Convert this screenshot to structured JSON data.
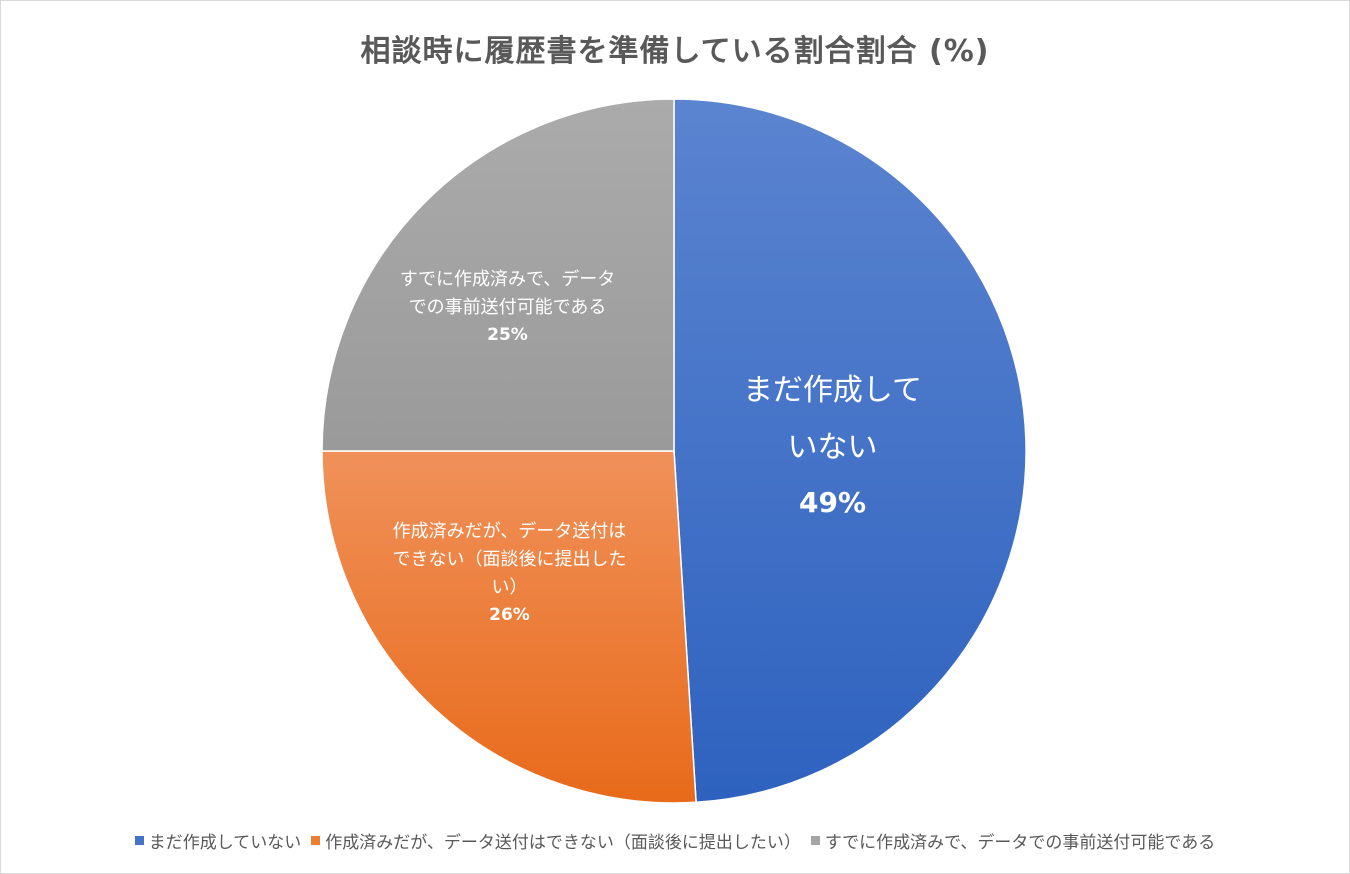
{
  "chart_data": {
    "type": "pie",
    "title": "相談時に履歴書を準備している割合割合 (%)",
    "categories": [
      "まだ作成していない",
      "作成済みだが、データ送付はできない（面談後に提出したい）",
      "すでに作成済みで、データでの事前送付可能である"
    ],
    "values": [
      49,
      26,
      25
    ],
    "data_labels": [
      {
        "category_lines": [
          "まだ作成して",
          "いない"
        ],
        "value": "49%"
      },
      {
        "category_lines": [
          "作成済みだが、データ送付は",
          "できない（面談後に提出した",
          "い）"
        ],
        "value": "26%"
      },
      {
        "category_lines": [
          "すでに作成済みで、データ",
          "での事前送付可能である"
        ],
        "value": "25%"
      }
    ],
    "colors": [
      "#4472C4",
      "#ED7D31",
      "#A5A5A5"
    ],
    "legend_position": "bottom",
    "start_angle": "12 o'clock, clockwise"
  }
}
